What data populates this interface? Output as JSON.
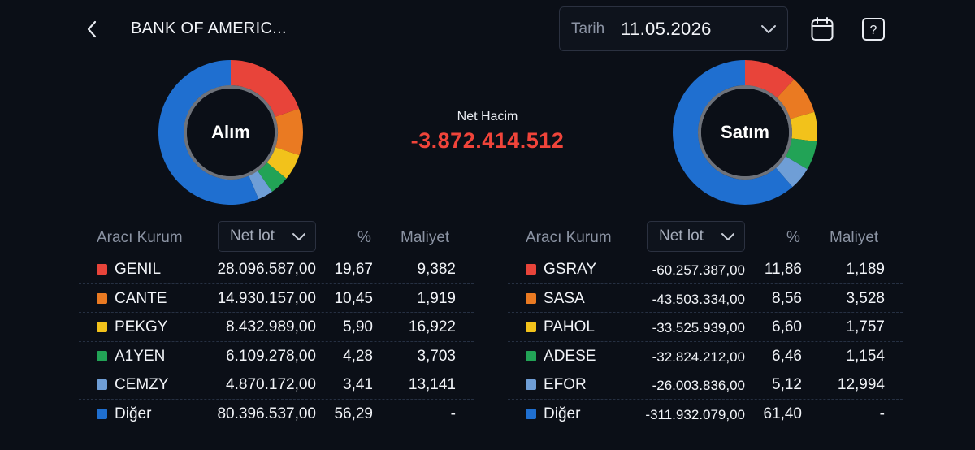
{
  "header": {
    "title": "BANK OF AMERIC...",
    "date_label": "Tarih",
    "date_value": "11.05.2026"
  },
  "icons": {
    "back": "chevron-left-icon",
    "date_dropdown": "chevron-down-icon",
    "calendar": "calendar-icon",
    "help": "help-icon"
  },
  "summary": {
    "net_label": "Net Hacim",
    "net_value": "-3.872.414.512",
    "net_color": "#f0443a"
  },
  "colors": {
    "red": "#e8443a",
    "orange": "#ea7a22",
    "yellow": "#f2c21b",
    "green": "#22a356",
    "lightblue": "#6f9ed6",
    "blue": "#1f6fd0"
  },
  "buy": {
    "donut_label": "Alım",
    "columns": {
      "broker": "Aracı Kurum",
      "lot_select": "Net lot",
      "pct": "%",
      "cost": "Maliyet"
    },
    "rows": [
      {
        "name": "GENIL",
        "lot": "28.096.587,00",
        "pct": "19,67",
        "cost": "9,382",
        "color": "#e8443a",
        "share": 19.67
      },
      {
        "name": "CANTE",
        "lot": "14.930.157,00",
        "pct": "10,45",
        "cost": "1,919",
        "color": "#ea7a22",
        "share": 10.45
      },
      {
        "name": "PEKGY",
        "lot": "8.432.989,00",
        "pct": "5,90",
        "cost": "16,922",
        "color": "#f2c21b",
        "share": 5.9
      },
      {
        "name": "A1YEN",
        "lot": "6.109.278,00",
        "pct": "4,28",
        "cost": "3,703",
        "color": "#22a356",
        "share": 4.28
      },
      {
        "name": "CEMZY",
        "lot": "4.870.172,00",
        "pct": "3,41",
        "cost": "13,141",
        "color": "#6f9ed6",
        "share": 3.41
      },
      {
        "name": "Diğer",
        "lot": "80.396.537,00",
        "pct": "56,29",
        "cost": "-",
        "color": "#1f6fd0",
        "share": 56.29
      }
    ]
  },
  "sell": {
    "donut_label": "Satım",
    "columns": {
      "broker": "Aracı Kurum",
      "lot_select": "Net lot",
      "pct": "%",
      "cost": "Maliyet"
    },
    "rows": [
      {
        "name": "GSRAY",
        "lot": "-60.257.387,00",
        "pct": "11,86",
        "cost": "1,189",
        "color": "#e8443a",
        "share": 11.86
      },
      {
        "name": "SASA",
        "lot": "-43.503.334,00",
        "pct": "8,56",
        "cost": "3,528",
        "color": "#ea7a22",
        "share": 8.56
      },
      {
        "name": "PAHOL",
        "lot": "-33.525.939,00",
        "pct": "6,60",
        "cost": "1,757",
        "color": "#f2c21b",
        "share": 6.6
      },
      {
        "name": "ADESE",
        "lot": "-32.824.212,00",
        "pct": "6,46",
        "cost": "1,154",
        "color": "#22a356",
        "share": 6.46
      },
      {
        "name": "EFOR",
        "lot": "-26.003.836,00",
        "pct": "5,12",
        "cost": "12,994",
        "color": "#6f9ed6",
        "share": 5.12
      },
      {
        "name": "Diğer",
        "lot": "-311.932.079,00",
        "pct": "61,40",
        "cost": "-",
        "color": "#1f6fd0",
        "share": 61.4
      }
    ]
  }
}
